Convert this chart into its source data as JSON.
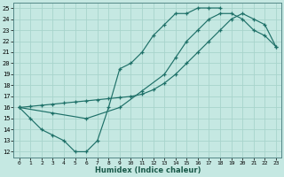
{
  "xlabel": "Humidex (Indice chaleur)",
  "xlim": [
    -0.5,
    23.5
  ],
  "ylim": [
    11.5,
    25.5
  ],
  "xticks": [
    0,
    1,
    2,
    3,
    4,
    5,
    6,
    7,
    8,
    9,
    10,
    11,
    12,
    13,
    14,
    15,
    16,
    17,
    18,
    19,
    20,
    21,
    22,
    23
  ],
  "yticks": [
    12,
    13,
    14,
    15,
    16,
    17,
    18,
    19,
    20,
    21,
    22,
    23,
    24,
    25
  ],
  "bg_color": "#c5e8e2",
  "grid_color": "#a8d4cc",
  "line_color": "#1e7068",
  "curve1_x": [
    0,
    1,
    2,
    3,
    4,
    5,
    6,
    7,
    8,
    9,
    10,
    11,
    12,
    13,
    14,
    15,
    16,
    17,
    18
  ],
  "curve1_y": [
    16,
    15,
    14,
    13.5,
    13,
    12,
    12,
    13,
    16,
    19.5,
    20,
    21,
    22.5,
    23.5,
    24.5,
    24.5,
    25,
    25,
    25
  ],
  "curve2_x": [
    0,
    1,
    2,
    3,
    4,
    5,
    6,
    7,
    8,
    9,
    10,
    11,
    12,
    13,
    14,
    15,
    16,
    17,
    18,
    19,
    20,
    21,
    22,
    23
  ],
  "curve2_y": [
    16,
    16.1,
    16.2,
    16.3,
    16.4,
    16.5,
    16.6,
    16.7,
    16.8,
    16.9,
    17.0,
    17.2,
    17.6,
    18.2,
    19.0,
    20.0,
    21.0,
    22.0,
    23.0,
    24.0,
    24.5,
    24.0,
    23.5,
    21.5
  ],
  "curve3_x": [
    0,
    3,
    6,
    9,
    11,
    13,
    14,
    15,
    16,
    17,
    18,
    19,
    20,
    21,
    22,
    23
  ],
  "curve3_y": [
    16,
    15.5,
    15,
    16,
    17.5,
    19,
    20.5,
    22,
    23,
    24,
    24.5,
    24.5,
    24,
    23,
    22.5,
    21.5
  ]
}
